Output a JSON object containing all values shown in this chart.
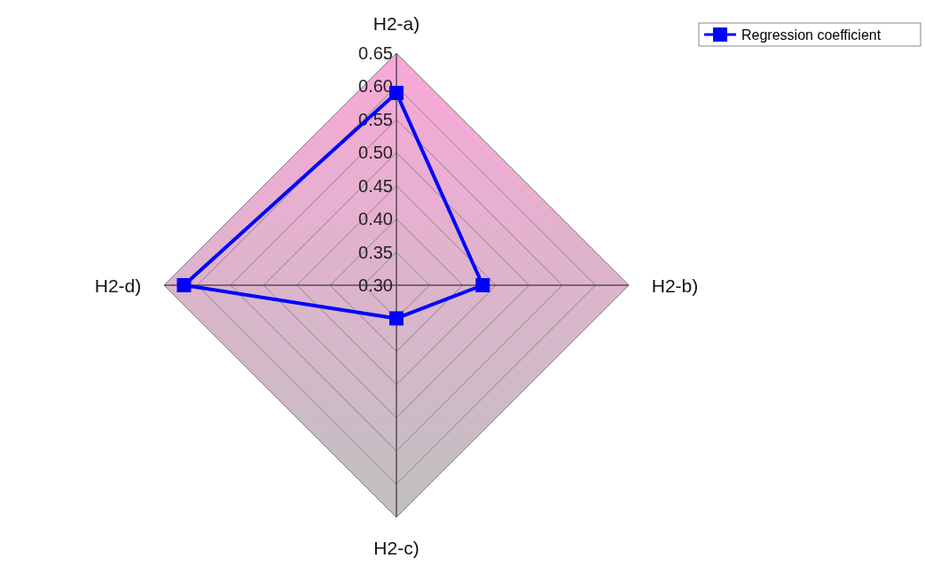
{
  "chart_data": {
    "type": "radar",
    "categories": [
      "H2-a)",
      "H2-b)",
      "H2-c)",
      "H2-d)"
    ],
    "series": [
      {
        "name": "Regression coefficient",
        "color": "#0000ff",
        "values": [
          0.59,
          0.43,
          0.35,
          0.62
        ]
      }
    ],
    "ylim": [
      0.3,
      0.65
    ],
    "yticks": [
      {
        "value": 0.3,
        "label": "0.30"
      },
      {
        "value": 0.35,
        "label": "0.35"
      },
      {
        "value": 0.4,
        "label": "0.40"
      },
      {
        "value": 0.45,
        "label": "0.45"
      },
      {
        "value": 0.5,
        "label": "0.50"
      },
      {
        "value": 0.55,
        "label": "0.55"
      },
      {
        "value": 0.6,
        "label": "0.60"
      },
      {
        "value": 0.65,
        "label": "0.65"
      }
    ],
    "grid": true,
    "legend": "top right",
    "marker": "square",
    "line_style": "solid"
  }
}
